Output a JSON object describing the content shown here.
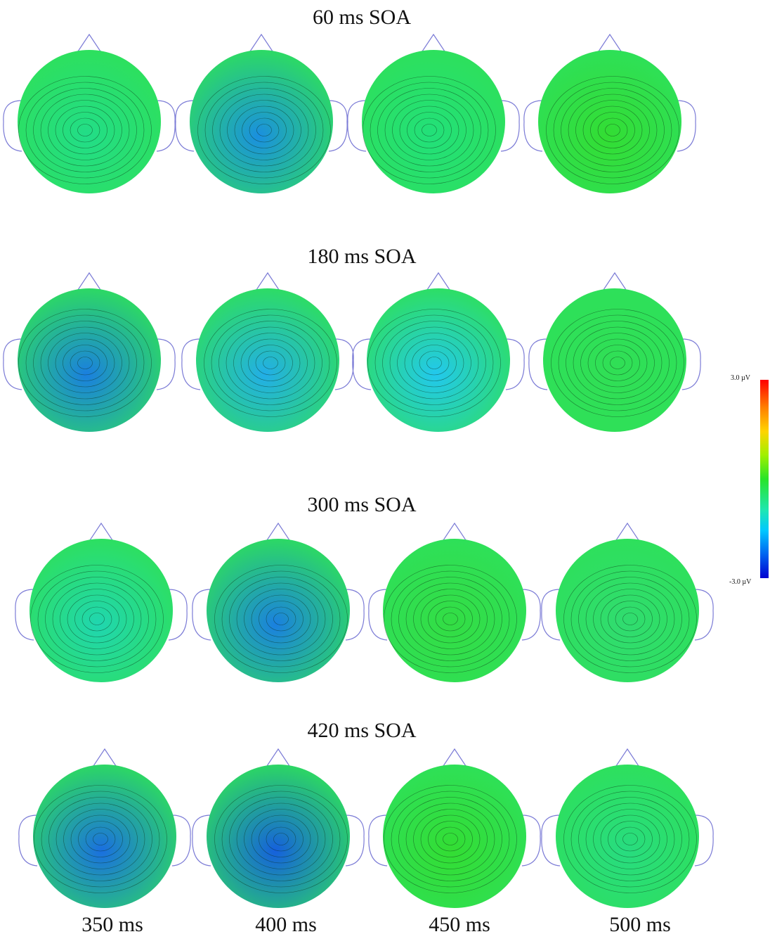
{
  "rows": [
    {
      "title": "60 ms SOA"
    },
    {
      "title": "180 ms SOA"
    },
    {
      "title": "300 ms SOA"
    },
    {
      "title": "420 ms SOA"
    }
  ],
  "time_labels": [
    "350 ms",
    "400 ms",
    "450 ms",
    "500 ms"
  ],
  "colorbar": {
    "max_label": "3.0 µV",
    "min_label": "-3.0 µV"
  },
  "colors": {
    "positive_max": "#ff0000",
    "zero": "#28e428",
    "negative_max": "#0000d0",
    "outline": "#7b7bd6"
  },
  "maps": [
    [
      {
        "fill": "#22dd88",
        "feature": "fronto-green band, left posterior cyan focus"
      },
      {
        "fill": "#1a8fe0",
        "feature": "central negative (blue)"
      },
      {
        "fill": "#22e07a",
        "feature": "left posterior cyan focus"
      },
      {
        "fill": "#33dd33",
        "feature": "mostly green"
      }
    ],
    [
      {
        "fill": "#1a7fe0",
        "feature": "posterior-left negative (blue)"
      },
      {
        "fill": "#22aee8",
        "feature": "central cyan"
      },
      {
        "fill": "#22c8ee",
        "feature": "central cyan"
      },
      {
        "fill": "#30df55",
        "feature": "mostly green"
      }
    ],
    [
      {
        "fill": "#20d6b0",
        "feature": "central cyan"
      },
      {
        "fill": "#1a80e0",
        "feature": "posterior-central negative (blue)"
      },
      {
        "fill": "#33dd44",
        "feature": "mostly green"
      },
      {
        "fill": "#30dc70",
        "feature": "green-cyan"
      }
    ],
    [
      {
        "fill": "#1a6fe0",
        "feature": "posterior negative (blue)"
      },
      {
        "fill": "#1560dd",
        "feature": "posterior-right negative (blue)"
      },
      {
        "fill": "#33dd33",
        "feature": "mostly green"
      },
      {
        "fill": "#28dc80",
        "feature": "right-frontal cyan"
      }
    ]
  ]
}
